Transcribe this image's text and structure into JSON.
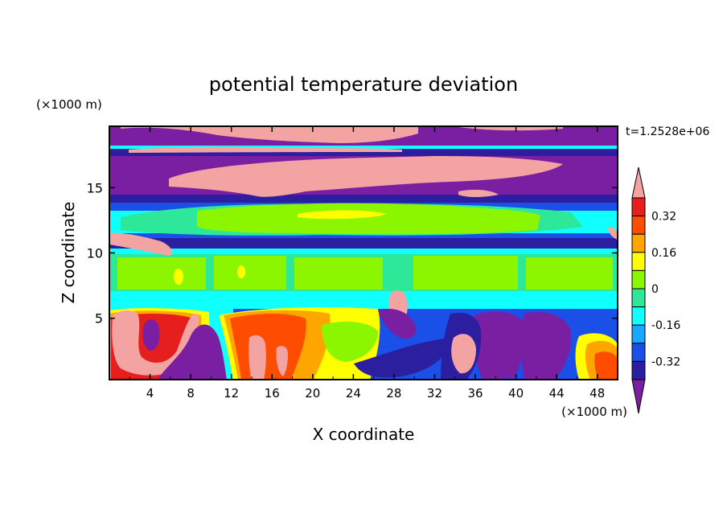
{
  "chart_data": {
    "type": "heatmap",
    "title": "potential temperature deviation",
    "xlabel": "X coordinate",
    "ylabel": "Z coordinate",
    "x_unit": "(×1000 m)",
    "y_unit": "(×1000 m)",
    "time_label": "t=1.2528e+06",
    "xlim": [
      0,
      50
    ],
    "ylim": [
      0.3,
      19.7
    ],
    "x_ticks": [
      "4",
      "8",
      "12",
      "16",
      "20",
      "24",
      "28",
      "32",
      "36",
      "40",
      "44",
      "48"
    ],
    "y_ticks": [
      "5",
      "10",
      "15"
    ],
    "colorbar": {
      "levels": [
        -0.4,
        -0.32,
        -0.24,
        -0.16,
        -0.08,
        0,
        0.08,
        0.16,
        0.24,
        0.32,
        0.4
      ],
      "tick_labels": [
        "0.32",
        "0.16",
        "0",
        "-0.16",
        "-0.32"
      ],
      "colors": [
        "#7a1fa2",
        "#2b1fa0",
        "#1a50e8",
        "#19a8ff",
        "#10ffff",
        "#2ee89a",
        "#8cf500",
        "#ffff00",
        "#ffa500",
        "#ff4d00",
        "#e61e1e",
        "#f4a3a3"
      ],
      "extend": "both"
    }
  }
}
